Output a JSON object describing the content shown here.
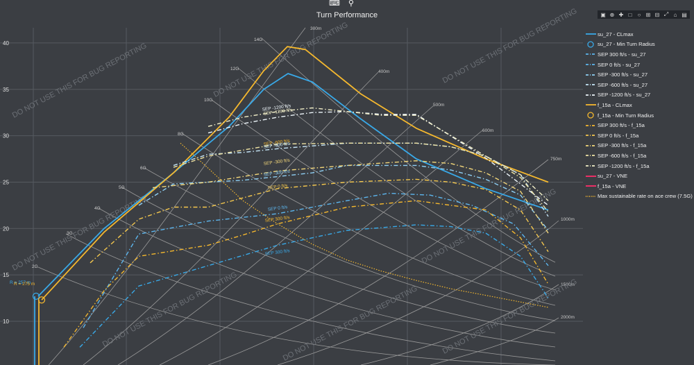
{
  "title": "Turn Performance",
  "watermark": "DO NOT USE THIS FOR BUG REPORTING",
  "colors": {
    "su_27": "#39a9e8",
    "f_15a": "#f5b82e",
    "sep_su": "#5db6ee",
    "sep_f": "#f5b82e",
    "sep_neg": "#f0ecc0",
    "vne": "#ff2e6b",
    "grid": "#565a60",
    "iso": "#9a9a9a"
  },
  "legend": [
    {
      "label": "su_27 - CLmax",
      "color": "#39a9e8",
      "style": "solid"
    },
    {
      "label": "su_27 - Min Turn Radius",
      "color": "#39a9e8",
      "style": "circle"
    },
    {
      "label": "SEP 300 ft/s - su_27",
      "color": "#5db6ee",
      "style": "dashdot"
    },
    {
      "label": "SEP 0 ft/s - su_27",
      "color": "#5db6ee",
      "style": "dashdot"
    },
    {
      "label": "SEP -300 ft/s - su_27",
      "color": "#8fd0f5",
      "style": "dashdot"
    },
    {
      "label": "SEP -600 ft/s - su_27",
      "color": "#c6e6f8",
      "style": "dashdot"
    },
    {
      "label": "SEP -1200 ft/s - su_27",
      "color": "#eef6fb",
      "style": "dashdot"
    },
    {
      "label": "f_15a - CLmax",
      "color": "#f5b82e",
      "style": "solid"
    },
    {
      "label": "f_15a - Min Turn Radius",
      "color": "#f5b82e",
      "style": "circle"
    },
    {
      "label": "SEP 300 ft/s - f_15a",
      "color": "#f5b82e",
      "style": "dashdot"
    },
    {
      "label": "SEP 0 ft/s - f_15a",
      "color": "#f5c84e",
      "style": "dashdot"
    },
    {
      "label": "SEP -300 ft/s - f_15a",
      "color": "#f3d77a",
      "style": "dashdot"
    },
    {
      "label": "SEP -600 ft/s - f_15a",
      "color": "#f0e4a4",
      "style": "dashdot"
    },
    {
      "label": "SEP -1200 ft/s - f_15a",
      "color": "#f2efc8",
      "style": "dashdot"
    },
    {
      "label": "su_27 - VNE",
      "color": "#ff2e6b",
      "style": "solid"
    },
    {
      "label": "f_15a - VNE",
      "color": "#ff2e6b",
      "style": "solid"
    },
    {
      "label": "Max sustainable rate on ace crew (7.5G)",
      "color": "#f5b82e",
      "style": "dotted"
    }
  ],
  "toolbar": [
    "camera-icon",
    "zoom-icon",
    "pan-icon",
    "box-select-icon",
    "lasso-icon",
    "zoom-in-icon",
    "zoom-out-icon",
    "autoscale-icon",
    "reset-icon",
    "logo-icon"
  ],
  "chart_data": {
    "type": "line",
    "title": "Turn Performance",
    "xlabel": "",
    "ylabel": "",
    "yticks": [
      10,
      15,
      20,
      25,
      30,
      35,
      40
    ],
    "ylim": [
      7.2,
      41.8
    ],
    "xlim": [
      0,
      1000
    ],
    "grid": true,
    "legend_position": "right",
    "g_labels": [
      "2G",
      "3G",
      "4G",
      "5G",
      "6G",
      "8G",
      "10G",
      "12G",
      "14G"
    ],
    "radius_labels": [
      "300m",
      "400m",
      "500m",
      "600m",
      "750m",
      "1000m",
      "1500m",
      "2000m"
    ],
    "annotations": [
      "R = 257 m",
      "R = 275 m",
      "SEP -1200 ft/s",
      "SEP -1200 ft/s",
      "SEP -600 ft/s",
      "SEP -600 ft/s",
      "SEP -300 ft/s",
      "SEP -300 ft/s",
      "SEP 0 ft/s",
      "SEP 0 ft/s",
      "SEP 300 ft/s",
      "SEP 300 ft/s"
    ],
    "series": [
      {
        "name": "su_27 - CLmax",
        "x": [
          55,
          150,
          250,
          330,
          380,
          415,
          450,
          520,
          600,
          700,
          790
        ],
        "y": [
          12.7,
          20,
          26,
          31,
          35,
          36.7,
          35.8,
          31.8,
          27.5,
          24.3,
          22
        ]
      },
      {
        "name": "f_15a - CLmax",
        "x": [
          60,
          150,
          250,
          330,
          380,
          414,
          440,
          520,
          600,
          700,
          790
        ],
        "y": [
          12.3,
          19.6,
          26,
          32,
          37,
          39.6,
          39.3,
          34.5,
          30.8,
          27.5,
          25
        ]
      },
      {
        "name": "SEP 300 ft/s - su_27",
        "x": [
          115,
          200,
          300,
          400,
          500,
          600,
          650,
          700,
          750,
          790
        ],
        "y": [
          7.2,
          13.8,
          16,
          18.2,
          19.8,
          20.4,
          20.2,
          19.5,
          17,
          12.5
        ]
      },
      {
        "name": "SEP 0 ft/s - su_27",
        "x": [
          120,
          200,
          300,
          400,
          500,
          560,
          620,
          680,
          740,
          790
        ],
        "y": [
          9.3,
          19.4,
          20.8,
          21.6,
          23,
          23.8,
          23.6,
          22.5,
          20.5,
          16
        ]
      },
      {
        "name": "SEP -300 ft/s - su_27",
        "x": [
          200,
          250,
          350,
          450,
          500,
          600,
          650,
          700,
          750,
          790
        ],
        "y": [
          22.5,
          24.8,
          25.2,
          26,
          26.8,
          26.8,
          26.3,
          25.3,
          23.6,
          19.8
        ]
      },
      {
        "name": "SEP -600 ft/s - su_27",
        "x": [
          250,
          300,
          350,
          400,
          500,
          600,
          650,
          700,
          750,
          790
        ],
        "y": [
          26.8,
          28,
          28.2,
          28.6,
          29.2,
          29.2,
          28.8,
          27.8,
          25.8,
          21.3
        ]
      },
      {
        "name": "SEP -1200 ft/s - su_27",
        "x": [
          300,
          350,
          400,
          450,
          500,
          550,
          600,
          700,
          750,
          790
        ],
        "y": [
          30.3,
          31.3,
          32,
          32.5,
          32.6,
          32.3,
          32.3,
          27.6,
          24.8,
          22.5
        ]
      },
      {
        "name": "SEP 300 ft/s - f_15a",
        "x": [
          92,
          150,
          200,
          300,
          350,
          400,
          500,
          600,
          700,
          750,
          790
        ],
        "y": [
          7.2,
          13.3,
          17,
          18.2,
          19.3,
          20.5,
          22.3,
          23,
          22,
          19,
          14
        ]
      },
      {
        "name": "SEP 0 ft/s - f_15a",
        "x": [
          130,
          200,
          250,
          300,
          350,
          400,
          500,
          600,
          650,
          700,
          750,
          790
        ],
        "y": [
          16.3,
          21,
          22.3,
          22.3,
          23.3,
          24.3,
          25,
          25.3,
          25,
          24.2,
          22,
          17.5
        ]
      },
      {
        "name": "SEP -300 ft/s - f_15a",
        "x": [
          220,
          300,
          400,
          500,
          600,
          650,
          700,
          750,
          790
        ],
        "y": [
          24.4,
          25,
          26.2,
          26.8,
          27.3,
          27,
          26,
          24,
          19.5
        ]
      },
      {
        "name": "SEP -600 ft/s - f_15a",
        "x": [
          250,
          300,
          400,
          500,
          600,
          650,
          700,
          750,
          790
        ],
        "y": [
          26.6,
          27.8,
          29.1,
          29.2,
          29.2,
          28.8,
          27.8,
          25.5,
          21.8
        ]
      },
      {
        "name": "SEP -1200 ft/s - f_15a",
        "x": [
          300,
          350,
          400,
          450,
          500,
          550,
          600,
          700,
          750,
          790
        ],
        "y": [
          31,
          32,
          32.6,
          33,
          32.6,
          32.2,
          32.2,
          27.8,
          25.8,
          23
        ]
      },
      {
        "name": "Max sustainable rate on ace crew (7.5G)",
        "x": [
          260,
          300,
          350,
          400,
          450,
          500,
          550,
          600,
          650,
          700,
          790
        ],
        "y": [
          29.2,
          26.5,
          23,
          20.5,
          18.3,
          16.6,
          15.4,
          14.4,
          13.5,
          12.8,
          11.5
        ]
      }
    ]
  }
}
